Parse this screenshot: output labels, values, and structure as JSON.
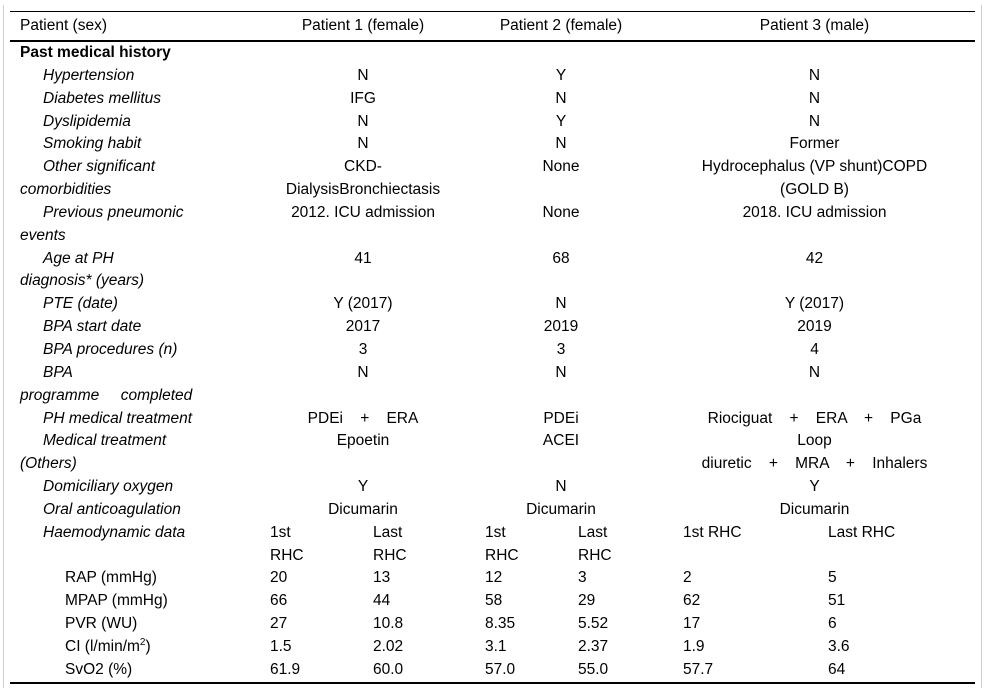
{
  "table": {
    "header": {
      "label": "Patient (sex)",
      "columns": [
        "Patient 1 (female)",
        "Patient 2 (female)",
        "Patient 3 (male)"
      ]
    },
    "section_title": "Past medical history",
    "rows": [
      {
        "label": "Hypertension",
        "values": [
          "N",
          "Y",
          "N"
        ]
      },
      {
        "label": "Diabetes mellitus",
        "values": [
          "IFG",
          "N",
          "N"
        ]
      },
      {
        "label": "Dyslipidemia",
        "values": [
          "N",
          "Y",
          "N"
        ]
      },
      {
        "label": "Smoking habit",
        "values": [
          "N",
          "N",
          "Former"
        ]
      },
      {
        "label": "Other significant\ncomorbidities",
        "values": [
          "CKD-\nDialysisBronchiectasis",
          "None",
          "Hydrocephalus (VP shunt)COPD\n(GOLD B)"
        ]
      },
      {
        "label": "Previous pneumonic\nevents",
        "values": [
          "2012. ICU admission",
          "None",
          "2018. ICU admission"
        ]
      },
      {
        "label": "Age at PH\ndiagnosis* (years)",
        "values": [
          "41",
          "68",
          "42"
        ]
      },
      {
        "label": "PTE (date)",
        "values": [
          "Y (2017)",
          "N",
          "Y (2017)"
        ]
      },
      {
        "label": "BPA start date",
        "values": [
          "2017",
          "2019",
          "2019"
        ]
      },
      {
        "label": "BPA procedures (n)",
        "values": [
          "3",
          "3",
          "4"
        ]
      },
      {
        "label": "BPA\nprogramme     completed",
        "values": [
          "N",
          "N",
          "N"
        ]
      },
      {
        "label": "PH medical treatment",
        "values": [
          "PDEi    +    ERA",
          "PDEi",
          "Riociguat    +    ERA    +    PGa"
        ]
      },
      {
        "label": "Medical treatment\n(Others)",
        "values": [
          "Epoetin",
          "ACEI",
          "Loop\ndiuretic    +    MRA    +    Inhalers"
        ]
      },
      {
        "label": "Domiciliary oxygen",
        "values": [
          "Y",
          "N",
          "Y"
        ]
      },
      {
        "label": "Oral anticoagulation",
        "values": [
          "Dicumarin",
          "Dicumarin",
          "Dicumarin"
        ]
      }
    ],
    "haemodynamic": {
      "label": "Haemodynamic data",
      "sub_headers": [
        "1st\nRHC",
        "Last\nRHC",
        "1st\nRHC",
        "Last\nRHC",
        "1st RHC",
        "Last RHC"
      ],
      "rows": [
        {
          "label": "RAP (mmHg)",
          "values": [
            "20",
            "13",
            "12",
            "3",
            "2",
            "5"
          ]
        },
        {
          "label": "MPAP (mmHg)",
          "values": [
            "66",
            "44",
            "58",
            "29",
            "62",
            "51"
          ]
        },
        {
          "label": "PVR (WU)",
          "values": [
            "27",
            "10.8",
            "8.35",
            "5.52",
            "17",
            "6"
          ]
        },
        {
          "label_parts": {
            "pre": "CI (l/min/m",
            "sup": "2",
            "post": ")"
          },
          "values": [
            "1.5",
            "2.02",
            "3.1",
            "2.37",
            "1.9",
            "3.6"
          ]
        },
        {
          "label": "SvO2 (%)",
          "values": [
            "61.9",
            "60.0",
            "57.0",
            "55.0",
            "57.7",
            "64"
          ]
        }
      ]
    }
  }
}
